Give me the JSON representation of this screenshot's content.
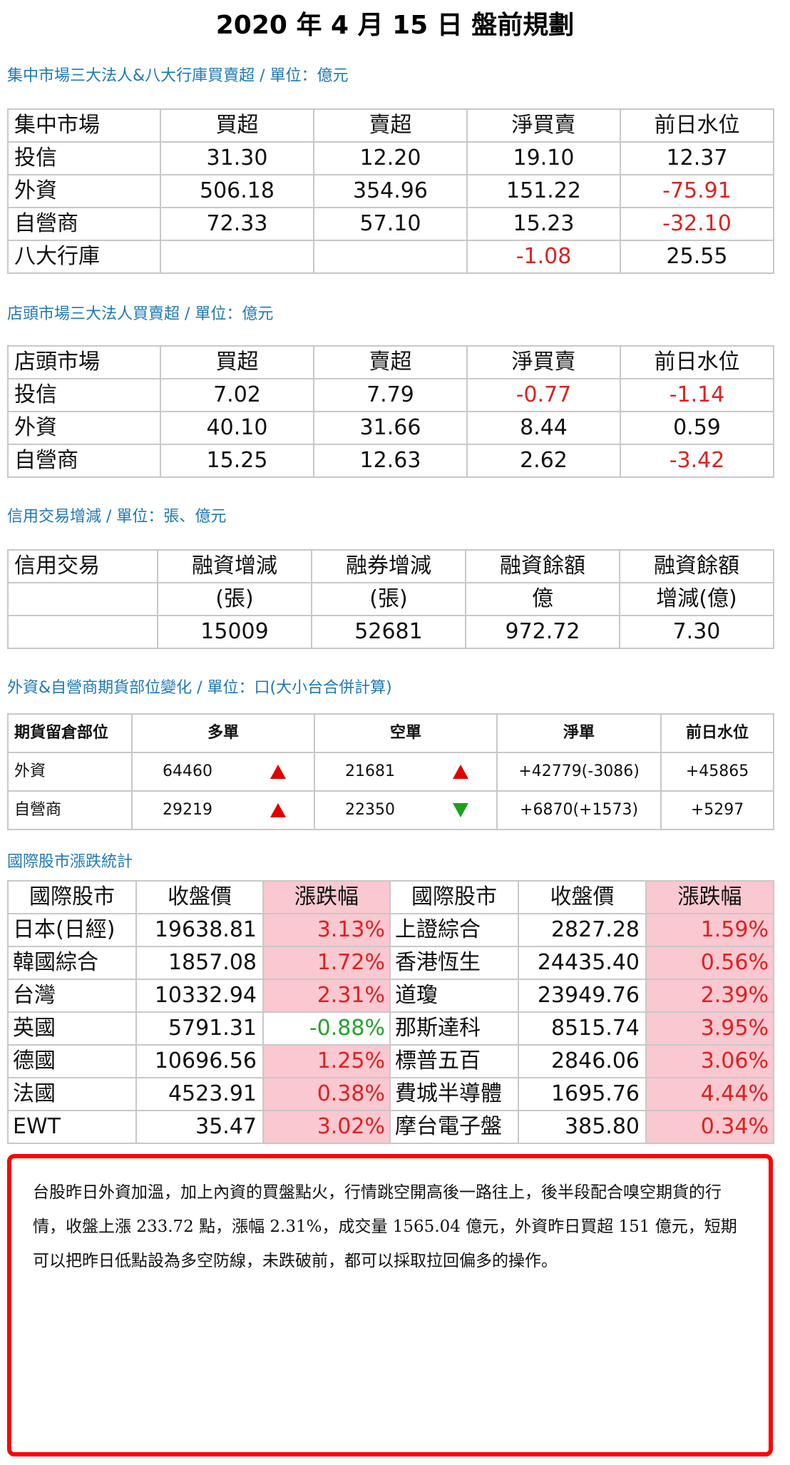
{
  "title": "2020 年 4 月 15 日  盤前規劃",
  "sections": {
    "listed": {
      "title": "集中市場三大法人&八大行庫買賣超 / 單位：億元",
      "headers": [
        "集中市場",
        "買超",
        "賣超",
        "淨買賣",
        "前日水位"
      ],
      "rows": [
        {
          "name": "投信",
          "buy": "31.30",
          "sell": "12.20",
          "net": "19.10",
          "prev": "12.37"
        },
        {
          "name": "外資",
          "buy": "506.18",
          "sell": "354.96",
          "net": "151.22",
          "prev": "-75.91"
        },
        {
          "name": "自營商",
          "buy": "72.33",
          "sell": "57.10",
          "net": "15.23",
          "prev": "-32.10"
        },
        {
          "name": "八大行庫",
          "buy": "",
          "sell": "",
          "net": "-1.08",
          "prev": "25.55"
        }
      ]
    },
    "otc": {
      "title": "店頭市場三大法人買賣超 / 單位：億元",
      "headers": [
        "店頭市場",
        "買超",
        "賣超",
        "淨買賣",
        "前日水位"
      ],
      "rows": [
        {
          "name": "投信",
          "buy": "7.02",
          "sell": "7.79",
          "net": "-0.77",
          "prev": "-1.14"
        },
        {
          "name": "外資",
          "buy": "40.10",
          "sell": "31.66",
          "net": "8.44",
          "prev": "0.59"
        },
        {
          "name": "自營商",
          "buy": "15.25",
          "sell": "12.63",
          "net": "2.62",
          "prev": "-3.42"
        }
      ]
    },
    "margin": {
      "title": "信用交易增減 / 單位：張、億元",
      "headers": [
        "信用交易",
        "融資增減",
        "融券增減",
        "融資餘額",
        "融資餘額"
      ],
      "subheaders": [
        "",
        "(張)",
        "(張)",
        "億",
        "增減(億)"
      ],
      "values": [
        "",
        "15009",
        "52681",
        "972.72",
        "7.30"
      ]
    },
    "futures": {
      "title": "外資&自營商期貨部位變化 / 單位：口(大小台合併計算)",
      "headers": [
        "期貨留倉部位",
        "多單",
        "空單",
        "淨單",
        "前日水位"
      ],
      "rows": [
        {
          "name": "外資",
          "long": "64460",
          "long_dir": "up",
          "short": "21681",
          "short_dir": "up",
          "net": "+42779(-3086)",
          "prev": "+45865"
        },
        {
          "name": "自營商",
          "long": "29219",
          "long_dir": "up",
          "short": "22350",
          "short_dir": "down",
          "net": "+6870(+1573)",
          "prev": "+5297"
        }
      ]
    },
    "intl": {
      "title": "國際股市漲跌統計",
      "headers": [
        "國際股市",
        "收盤價",
        "漲跌幅",
        "國際股市",
        "收盤價",
        "漲跌幅"
      ],
      "rows": [
        {
          "n1": "日本(日經)",
          "p1": "19638.81",
          "c1": "3.13%",
          "n2": "上證綜合",
          "p2": "2827.28",
          "c2": "1.59%"
        },
        {
          "n1": "韓國綜合",
          "p1": "1857.08",
          "c1": "1.72%",
          "n2": "香港恆生",
          "p2": "24435.40",
          "c2": "0.56%"
        },
        {
          "n1": "台灣",
          "p1": "10332.94",
          "c1": "2.31%",
          "n2": "道瓊",
          "p2": "23949.76",
          "c2": "2.39%"
        },
        {
          "n1": "英國",
          "p1": "5791.31",
          "c1": "-0.88%",
          "n2": "那斯達科",
          "p2": "8515.74",
          "c2": "3.95%"
        },
        {
          "n1": "德國",
          "p1": "10696.56",
          "c1": "1.25%",
          "n2": "標普五百",
          "p2": "2846.06",
          "c2": "3.06%"
        },
        {
          "n1": "法國",
          "p1": "4523.91",
          "c1": "0.38%",
          "n2": "費城半導體",
          "p2": "1695.76",
          "c2": "4.44%"
        },
        {
          "n1": "EWT",
          "p1": "35.47",
          "c1": "3.02%",
          "n2": "摩台電子盤",
          "p2": "385.80",
          "c2": "0.34%"
        }
      ]
    }
  },
  "commentary": "台股昨日外資加溫，加上內資的買盤點火，行情跳空開高後一路往上，後半段配合嗅空期貨的行情，收盤上漲 233.72 點，漲幅 2.31%，成交量 1565.04 億元，外資昨日買超 151 億元，短期可以把昨日低點設為多空防線，未跌破前，都可以採取拉回偏多的操作。",
  "colors": {
    "section_title": "#1f78b4",
    "negative": "#e02020",
    "positive_green": "#22a22a",
    "up_highlight": "#f9c8d0",
    "frame": "#ff0000"
  }
}
